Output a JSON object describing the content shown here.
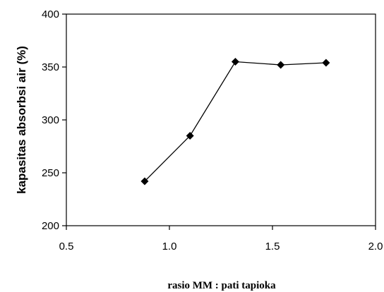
{
  "chart_data": {
    "type": "line",
    "title": "",
    "xlabel": "rasio MM : pati tapioka",
    "ylabel": "kapasitas absorbsi air (%)",
    "xlim": [
      0.5,
      2.0
    ],
    "ylim": [
      200,
      400
    ],
    "xticks": [
      "0.5",
      "1.0",
      "1.5",
      "2.0"
    ],
    "yticks": [
      "200",
      "250",
      "300",
      "350",
      "400"
    ],
    "grid": false,
    "legend": "none",
    "series": [
      {
        "marker": "diamond",
        "color": "#000000",
        "x": [
          0.88,
          1.1,
          1.32,
          1.54,
          1.76
        ],
        "y": [
          242,
          285,
          355,
          352,
          354
        ]
      }
    ]
  }
}
